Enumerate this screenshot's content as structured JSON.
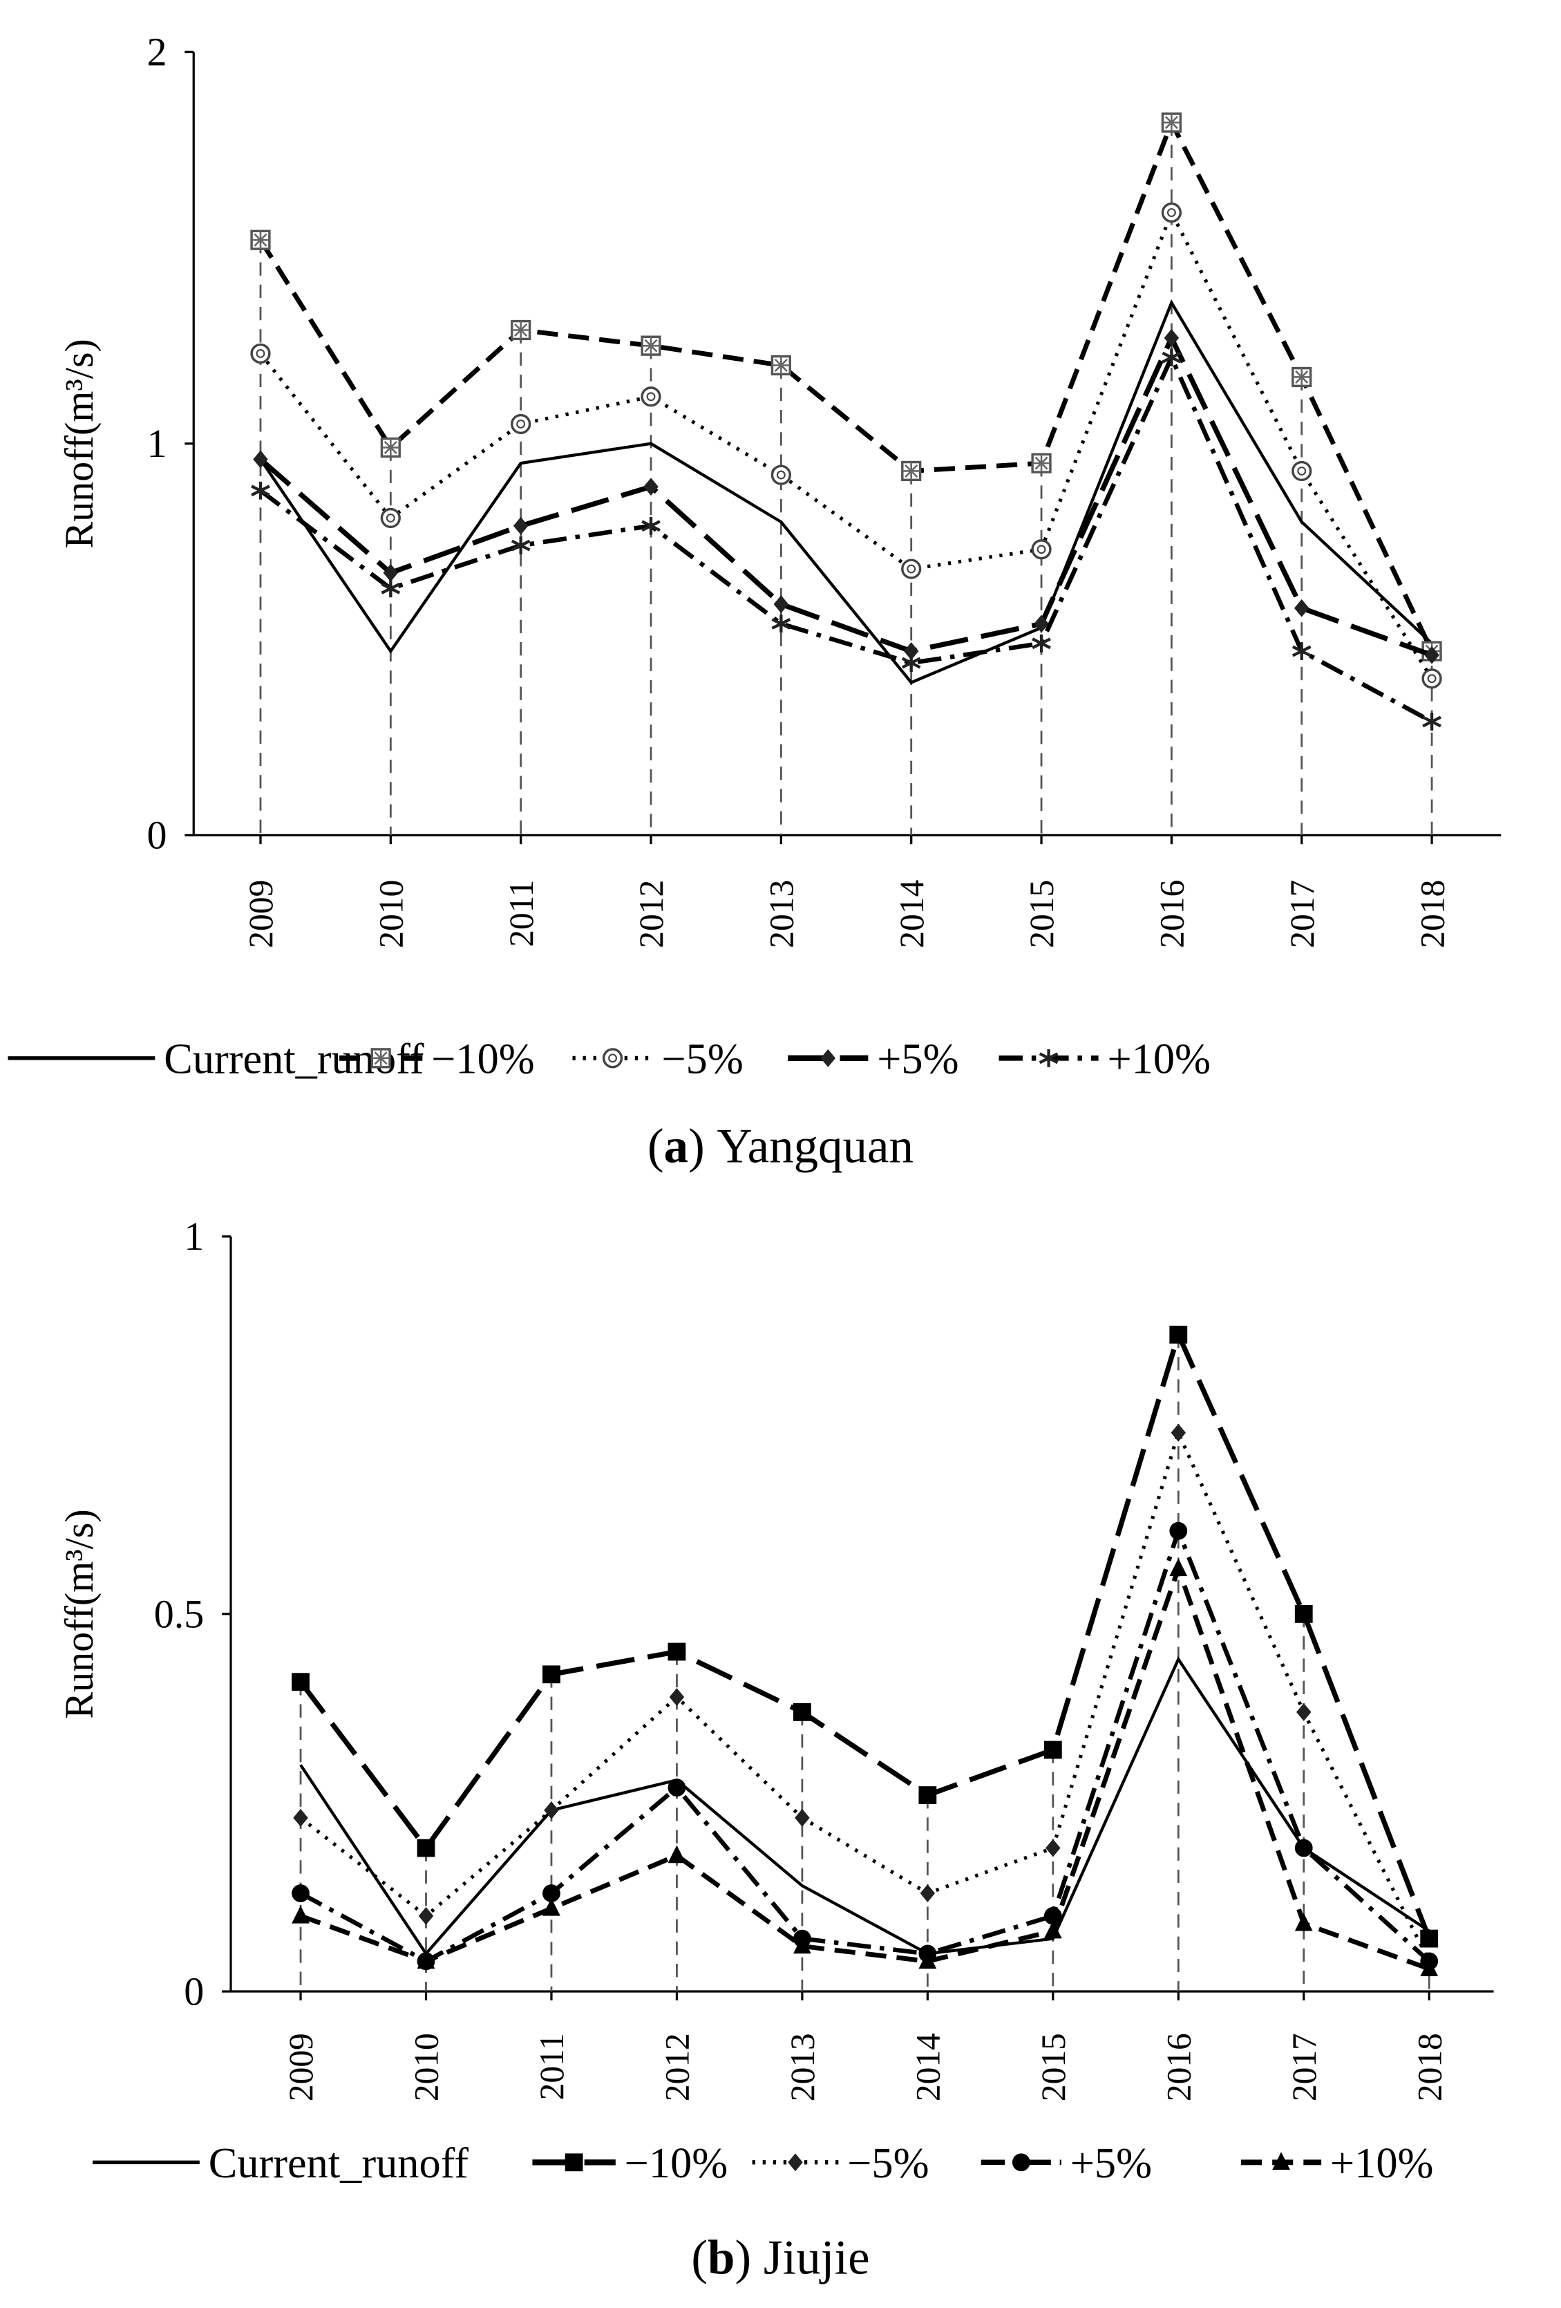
{
  "chart_data": [
    {
      "type": "line",
      "caption_letter": "a",
      "caption_name": "Yangquan",
      "ylabel": "Runoff(m³/s)",
      "xlabel": "",
      "ylim": [
        0,
        2
      ],
      "yticks": [
        "0",
        "1",
        "2"
      ],
      "ytick_values": [
        0,
        1,
        2
      ],
      "categories": [
        "2009",
        "2010",
        "2011",
        "2012",
        "2013",
        "2014",
        "2015",
        "2016",
        "2017",
        "2018"
      ],
      "legend_position": "bottom",
      "series": [
        {
          "name": "Current_runoff",
          "style": "solid",
          "marker": "none",
          "values": [
            0.96,
            0.47,
            0.95,
            1.0,
            0.8,
            0.39,
            0.53,
            1.36,
            0.8,
            0.49
          ]
        },
        {
          "name": "−10%",
          "style": "dash",
          "marker": "square-star",
          "values": [
            1.52,
            0.99,
            1.29,
            1.25,
            1.2,
            0.93,
            0.95,
            1.82,
            1.17,
            0.47
          ]
        },
        {
          "name": "−5%",
          "style": "dot",
          "marker": "open-circle",
          "values": [
            1.23,
            0.81,
            1.05,
            1.12,
            0.92,
            0.68,
            0.73,
            1.59,
            0.93,
            0.4
          ]
        },
        {
          "name": "+5%",
          "style": "longdash",
          "marker": "diamond",
          "values": [
            0.96,
            0.67,
            0.79,
            0.89,
            0.59,
            0.47,
            0.54,
            1.27,
            0.58,
            0.46
          ]
        },
        {
          "name": "+10%",
          "style": "dashdot",
          "marker": "asterisk",
          "values": [
            0.88,
            0.63,
            0.74,
            0.79,
            0.54,
            0.44,
            0.49,
            1.22,
            0.47,
            0.29
          ]
        }
      ]
    },
    {
      "type": "line",
      "caption_letter": "b",
      "caption_name": "Jiujie",
      "ylabel": "Runoff(m³/s)",
      "xlabel": "",
      "ylim": [
        0,
        1
      ],
      "yticks": [
        "0",
        "0.5",
        "1"
      ],
      "ytick_values": [
        0,
        0.5,
        1
      ],
      "categories": [
        "2009",
        "2010",
        "2011",
        "2012",
        "2013",
        "2014",
        "2015",
        "2016",
        "2017",
        "2018"
      ],
      "legend_position": "bottom",
      "series": [
        {
          "name": "Current_runoff",
          "style": "solid",
          "marker": "none",
          "values": [
            0.3,
            0.05,
            0.24,
            0.28,
            0.14,
            0.05,
            0.07,
            0.44,
            0.19,
            0.08
          ]
        },
        {
          "name": "−10%",
          "style": "longdash",
          "marker": "square",
          "values": [
            0.41,
            0.19,
            0.42,
            0.45,
            0.37,
            0.26,
            0.32,
            0.87,
            0.5,
            0.07
          ]
        },
        {
          "name": "−5%",
          "style": "dot",
          "marker": "diamond",
          "values": [
            0.23,
            0.1,
            0.24,
            0.39,
            0.23,
            0.13,
            0.19,
            0.74,
            0.37,
            0.04
          ]
        },
        {
          "name": "+5%",
          "style": "dashdot",
          "marker": "circle",
          "values": [
            0.13,
            0.04,
            0.13,
            0.27,
            0.07,
            0.05,
            0.1,
            0.61,
            0.19,
            0.04
          ]
        },
        {
          "name": "+10%",
          "style": "dash",
          "marker": "triangle",
          "values": [
            0.1,
            0.04,
            0.11,
            0.18,
            0.06,
            0.04,
            0.08,
            0.56,
            0.09,
            0.03
          ]
        }
      ]
    }
  ]
}
